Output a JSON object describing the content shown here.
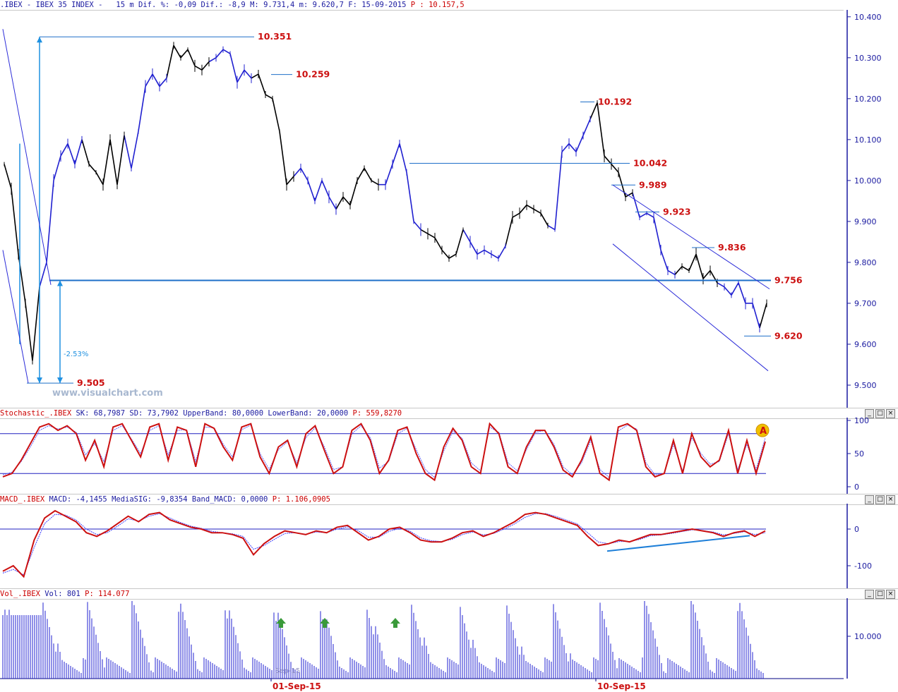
{
  "main": {
    "header": {
      "symbol": ".IBEX - IBEX 35 INDEX -",
      "period": "15 m",
      "dif_pct_label": "Dif. %:",
      "dif_pct": "-0,09",
      "dif_label": "Dif.:",
      "dif": "-8,9",
      "max_label": "M:",
      "max": "9.731,4",
      "min_label": "m:",
      "min": "9.620,7",
      "date_label": "F:",
      "date": "15-09-2015",
      "p_label": "P :",
      "p": "10.157,5"
    },
    "watermark": "www.visualchart.com",
    "yticks": [
      "10.400",
      "10.300",
      "10.200",
      "10.100",
      "10.000",
      "9.900",
      "9.800",
      "9.700",
      "9.600",
      "9.500"
    ],
    "levels": [
      "10.351",
      "10.259",
      "10.192",
      "10.042",
      "9.989",
      "9.923",
      "9.836",
      "9.756",
      "9.620",
      "9.505"
    ],
    "pct_label": "-2.53%"
  },
  "stochastic": {
    "header": {
      "name": "Stochastic_.IBEX",
      "sk_label": "SK:",
      "sk": "68,7987",
      "sd_label": "SD:",
      "sd": "73,7902",
      "ub_label": "UpperBand:",
      "ub": "80,0000",
      "lb_label": "LowerBand:",
      "lb": "20,0000",
      "p_label": "P:",
      "p": "559,8270"
    },
    "yticks": [
      "100",
      "50",
      "0"
    ],
    "marker": "A"
  },
  "macd": {
    "header": {
      "name": "MACD_.IBEX",
      "macd_label": "MACD:",
      "macd": "-4,1455",
      "sig_label": "MediaSIG:",
      "sig": "-9,8354",
      "band_label": "Band_MACD:",
      "band": "0,0000",
      "p_label": "P:",
      "p": "1.106,0905"
    },
    "yticks": [
      "0",
      "-100"
    ]
  },
  "volume": {
    "header": {
      "name": "Vol_.IBEX",
      "vol_label": "Vol:",
      "vol": "801",
      "p_label": "P:",
      "p": "114.077"
    },
    "yticks": [
      "10.000"
    ]
  },
  "xaxis": {
    "dates": [
      "01-Sep-15",
      "10-Sep-15"
    ],
    "faint": "Sep-15"
  },
  "colors": {
    "blue_line": "#1e6fc8",
    "dark_blue": "#1a1aa0",
    "red": "#cc1010",
    "bar_black": "#000000",
    "bar_blue": "#2020d0",
    "arrow_green": "#3a9a3a",
    "marker_yellow": "#f0c000"
  },
  "chart_data": [
    {
      "type": "line",
      "title": ".IBEX - IBEX 35 INDEX - 15 m",
      "ylim": [
        9450,
        10410
      ],
      "yticks": [
        10400,
        10300,
        10200,
        10100,
        10000,
        9900,
        9800,
        9700,
        9600,
        9500
      ],
      "x_dates": [
        "01-Sep-15",
        "10-Sep-15"
      ],
      "levels": [
        10351,
        10259,
        10192,
        10042,
        9989,
        9923,
        9836,
        9756,
        9620,
        9505
      ],
      "series": [
        {
          "name": "",
          "x": [
            0,
            10,
            20,
            30,
            40,
            50,
            60,
            70,
            80,
            90,
            100,
            110,
            120,
            130,
            140,
            150,
            160,
            170,
            180,
            190,
            200,
            210,
            220,
            230,
            240,
            250,
            260,
            270,
            280,
            290,
            300,
            310,
            320,
            330,
            340,
            350,
            360,
            370,
            380,
            390,
            400,
            410,
            420,
            430,
            440,
            450,
            460,
            470,
            480,
            490,
            500,
            510,
            520,
            530,
            540,
            550,
            560,
            570,
            580,
            590,
            600,
            610,
            620,
            630,
            640,
            650,
            660,
            670,
            680,
            690,
            700,
            710,
            720,
            730,
            740,
            750,
            760,
            770,
            780,
            790,
            800,
            810,
            820,
            830,
            840,
            850,
            860,
            870,
            880,
            890,
            900,
            910,
            920,
            930,
            940,
            950,
            960,
            970,
            980,
            990,
            1000,
            1010,
            1020,
            1030,
            1040,
            1050,
            1060,
            1070,
            1080
          ],
          "y": [
            10040,
            9980,
            9820,
            9700,
            9560,
            9740,
            9800,
            10000,
            10060,
            10090,
            10040,
            10100,
            10040,
            10020,
            9990,
            10100,
            9990,
            10110,
            10030,
            10120,
            10230,
            10260,
            10230,
            10250,
            10330,
            10300,
            10320,
            10280,
            10270,
            10290,
            10300,
            10320,
            10310,
            10240,
            10270,
            10250,
            10260,
            10210,
            10200,
            10120,
            9990,
            10010,
            10030,
            10000,
            9950,
            10000,
            9960,
            9930,
            9960,
            9940,
            10000,
            10030,
            10000,
            9990,
            9990,
            10040,
            10090,
            10020,
            9900,
            9880,
            9870,
            9860,
            9830,
            9810,
            9820,
            9880,
            9850,
            9820,
            9830,
            9820,
            9810,
            9840,
            9910,
            9920,
            9940,
            9930,
            9920,
            9890,
            9880,
            10070,
            10090,
            10070,
            10110,
            10150,
            10190,
            10060,
            10040,
            10020,
            9960,
            9970,
            9910,
            9920,
            9910,
            9830,
            9780,
            9770,
            9790,
            9780,
            9820,
            9760,
            9780,
            9750,
            9740,
            9720,
            9750,
            9700,
            9700,
            9640,
            9700
          ]
        }
      ]
    },
    {
      "type": "line",
      "title": "Stochastic_.IBEX",
      "ylim": [
        0,
        100
      ],
      "yticks": [
        100,
        50,
        0
      ],
      "bands": [
        80,
        20
      ],
      "series": [
        {
          "name": "SK",
          "y": [
            15,
            20,
            40,
            65,
            90,
            95,
            85,
            92,
            80,
            40,
            70,
            30,
            90,
            95,
            70,
            45,
            90,
            95,
            40,
            90,
            85,
            30,
            95,
            88,
            60,
            40,
            90,
            95,
            45,
            20,
            60,
            70,
            30,
            80,
            92,
            55,
            20,
            30,
            85,
            95,
            70,
            20,
            40,
            85,
            90,
            50,
            20,
            10,
            60,
            88,
            70,
            30,
            20,
            95,
            80,
            30,
            20,
            60,
            85,
            85,
            60,
            25,
            15,
            40,
            75,
            20,
            10,
            90,
            95,
            85,
            30,
            15,
            20,
            70,
            20,
            80,
            45,
            30,
            40,
            85,
            20,
            70,
            20,
            68
          ]
        },
        {
          "name": "SD",
          "y": [
            18,
            22,
            38,
            60,
            85,
            92,
            87,
            90,
            82,
            48,
            65,
            38,
            85,
            92,
            72,
            50,
            85,
            92,
            48,
            85,
            86,
            38,
            90,
            89,
            64,
            45,
            86,
            93,
            50,
            26,
            56,
            68,
            36,
            74,
            89,
            60,
            26,
            30,
            80,
            92,
            74,
            28,
            38,
            80,
            88,
            56,
            26,
            14,
            54,
            84,
            73,
            36,
            24,
            90,
            82,
            36,
            24,
            56,
            82,
            85,
            64,
            30,
            18,
            36,
            70,
            26,
            14,
            84,
            93,
            87,
            36,
            18,
            20,
            64,
            24,
            74,
            50,
            34,
            38,
            80,
            26,
            64,
            26,
            74
          ]
        }
      ]
    },
    {
      "type": "line",
      "title": "MACD_.IBEX",
      "yticks": [
        0,
        -100
      ],
      "series": [
        {
          "name": "MACD",
          "y": [
            -115,
            -100,
            -130,
            -30,
            30,
            50,
            35,
            20,
            -10,
            -20,
            -5,
            15,
            35,
            20,
            40,
            45,
            25,
            15,
            5,
            0,
            -10,
            -10,
            -15,
            -25,
            -70,
            -40,
            -20,
            -5,
            -10,
            -15,
            -5,
            -10,
            5,
            10,
            -10,
            -30,
            -20,
            0,
            5,
            -10,
            -30,
            -35,
            -35,
            -25,
            -10,
            -5,
            -20,
            -10,
            5,
            20,
            40,
            45,
            40,
            30,
            20,
            10,
            -20,
            -45,
            -40,
            -30,
            -35,
            -25,
            -15,
            -15,
            -10,
            -5,
            0,
            -5,
            -10,
            -20,
            -10,
            -5,
            -20,
            -5
          ]
        },
        {
          "name": "MediaSIG",
          "y": [
            -120,
            -110,
            -125,
            -50,
            15,
            40,
            38,
            25,
            0,
            -15,
            -10,
            8,
            28,
            22,
            35,
            42,
            30,
            18,
            8,
            2,
            -6,
            -10,
            -13,
            -20,
            -55,
            -45,
            -28,
            -12,
            -10,
            -14,
            -8,
            -10,
            0,
            6,
            -4,
            -22,
            -22,
            -6,
            2,
            -6,
            -24,
            -32,
            -34,
            -28,
            -15,
            -8,
            -16,
            -12,
            0,
            14,
            32,
            42,
            42,
            34,
            24,
            14,
            -10,
            -35,
            -40,
            -34,
            -34,
            -28,
            -18,
            -16,
            -12,
            -7,
            -2,
            -4,
            -8,
            -16,
            -12,
            -7,
            -15,
            -10
          ]
        }
      ]
    },
    {
      "type": "bar",
      "title": "Vol_.IBEX",
      "yticks": [
        10000
      ],
      "note": "15-minute volume bars; spikes at session opens"
    }
  ]
}
